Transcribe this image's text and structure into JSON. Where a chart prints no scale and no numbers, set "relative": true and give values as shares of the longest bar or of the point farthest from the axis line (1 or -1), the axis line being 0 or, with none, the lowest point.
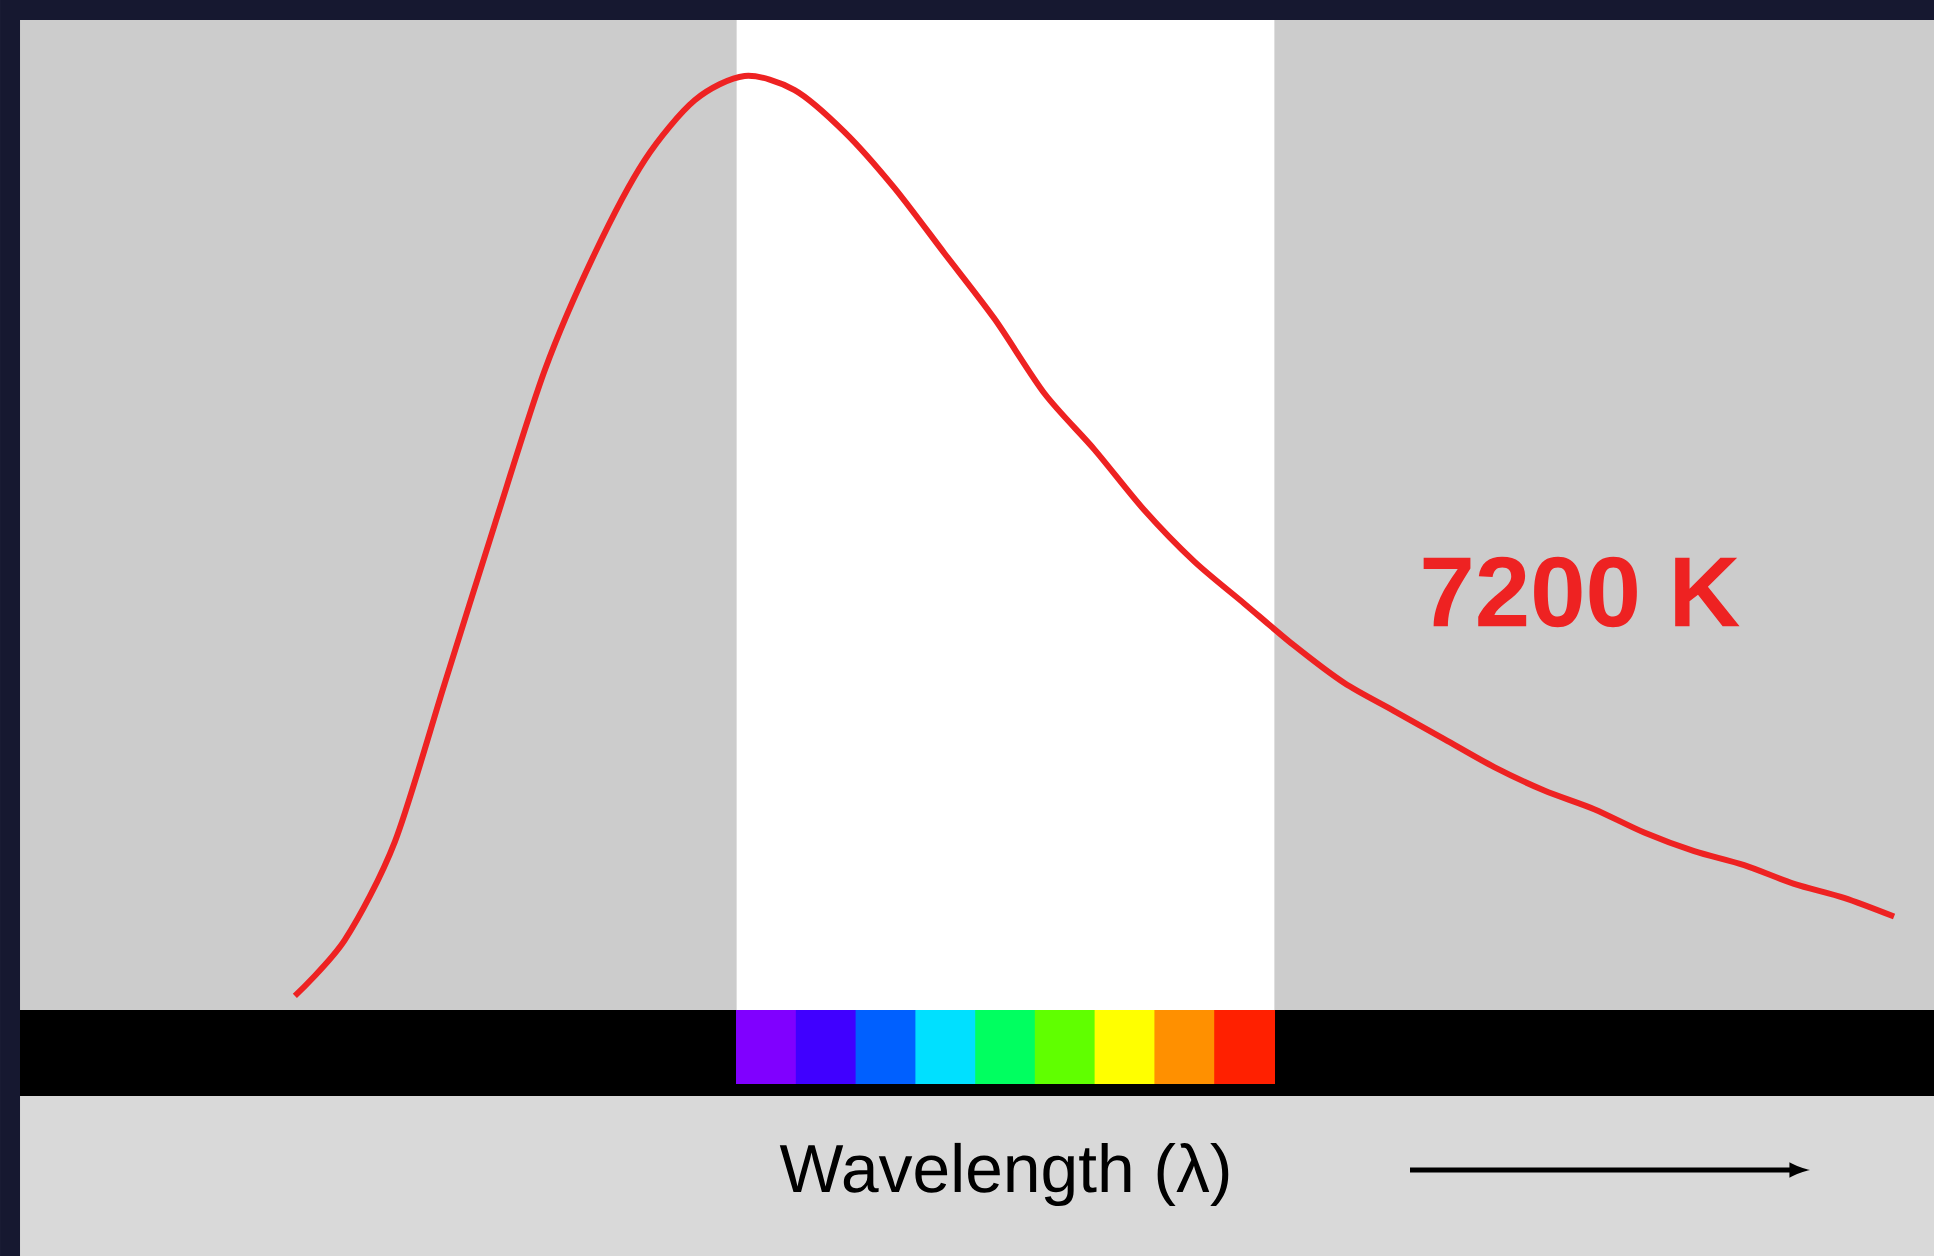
{
  "chart_data": {
    "type": "line",
    "relative": true,
    "categories": [
      null,
      null,
      null,
      null,
      null,
      null,
      null,
      null,
      null,
      null,
      null,
      null,
      null,
      null,
      null,
      null,
      null,
      null,
      null,
      null,
      null,
      null,
      null,
      null,
      null,
      null,
      null,
      null,
      null,
      null,
      null,
      null,
      null
    ],
    "series": [
      {
        "color": "#ee2222",
        "values": [
          0.015,
          0.075,
          0.18,
          0.35,
          0.52,
          0.685,
          0.81,
          0.91,
          0.974,
          1.0,
          0.985,
          0.94,
          0.88,
          0.81,
          0.74,
          0.66,
          0.6,
          0.535,
          0.48,
          0.435,
          0.39,
          0.35,
          0.32,
          0.29,
          0.26,
          0.235,
          0.215,
          0.19,
          0.17,
          0.155,
          0.135,
          0.12,
          0.1
        ]
      }
    ],
    "xlabel": "Wavelength (λ)",
    "annotations": [
      "7200 K"
    ]
  }
}
